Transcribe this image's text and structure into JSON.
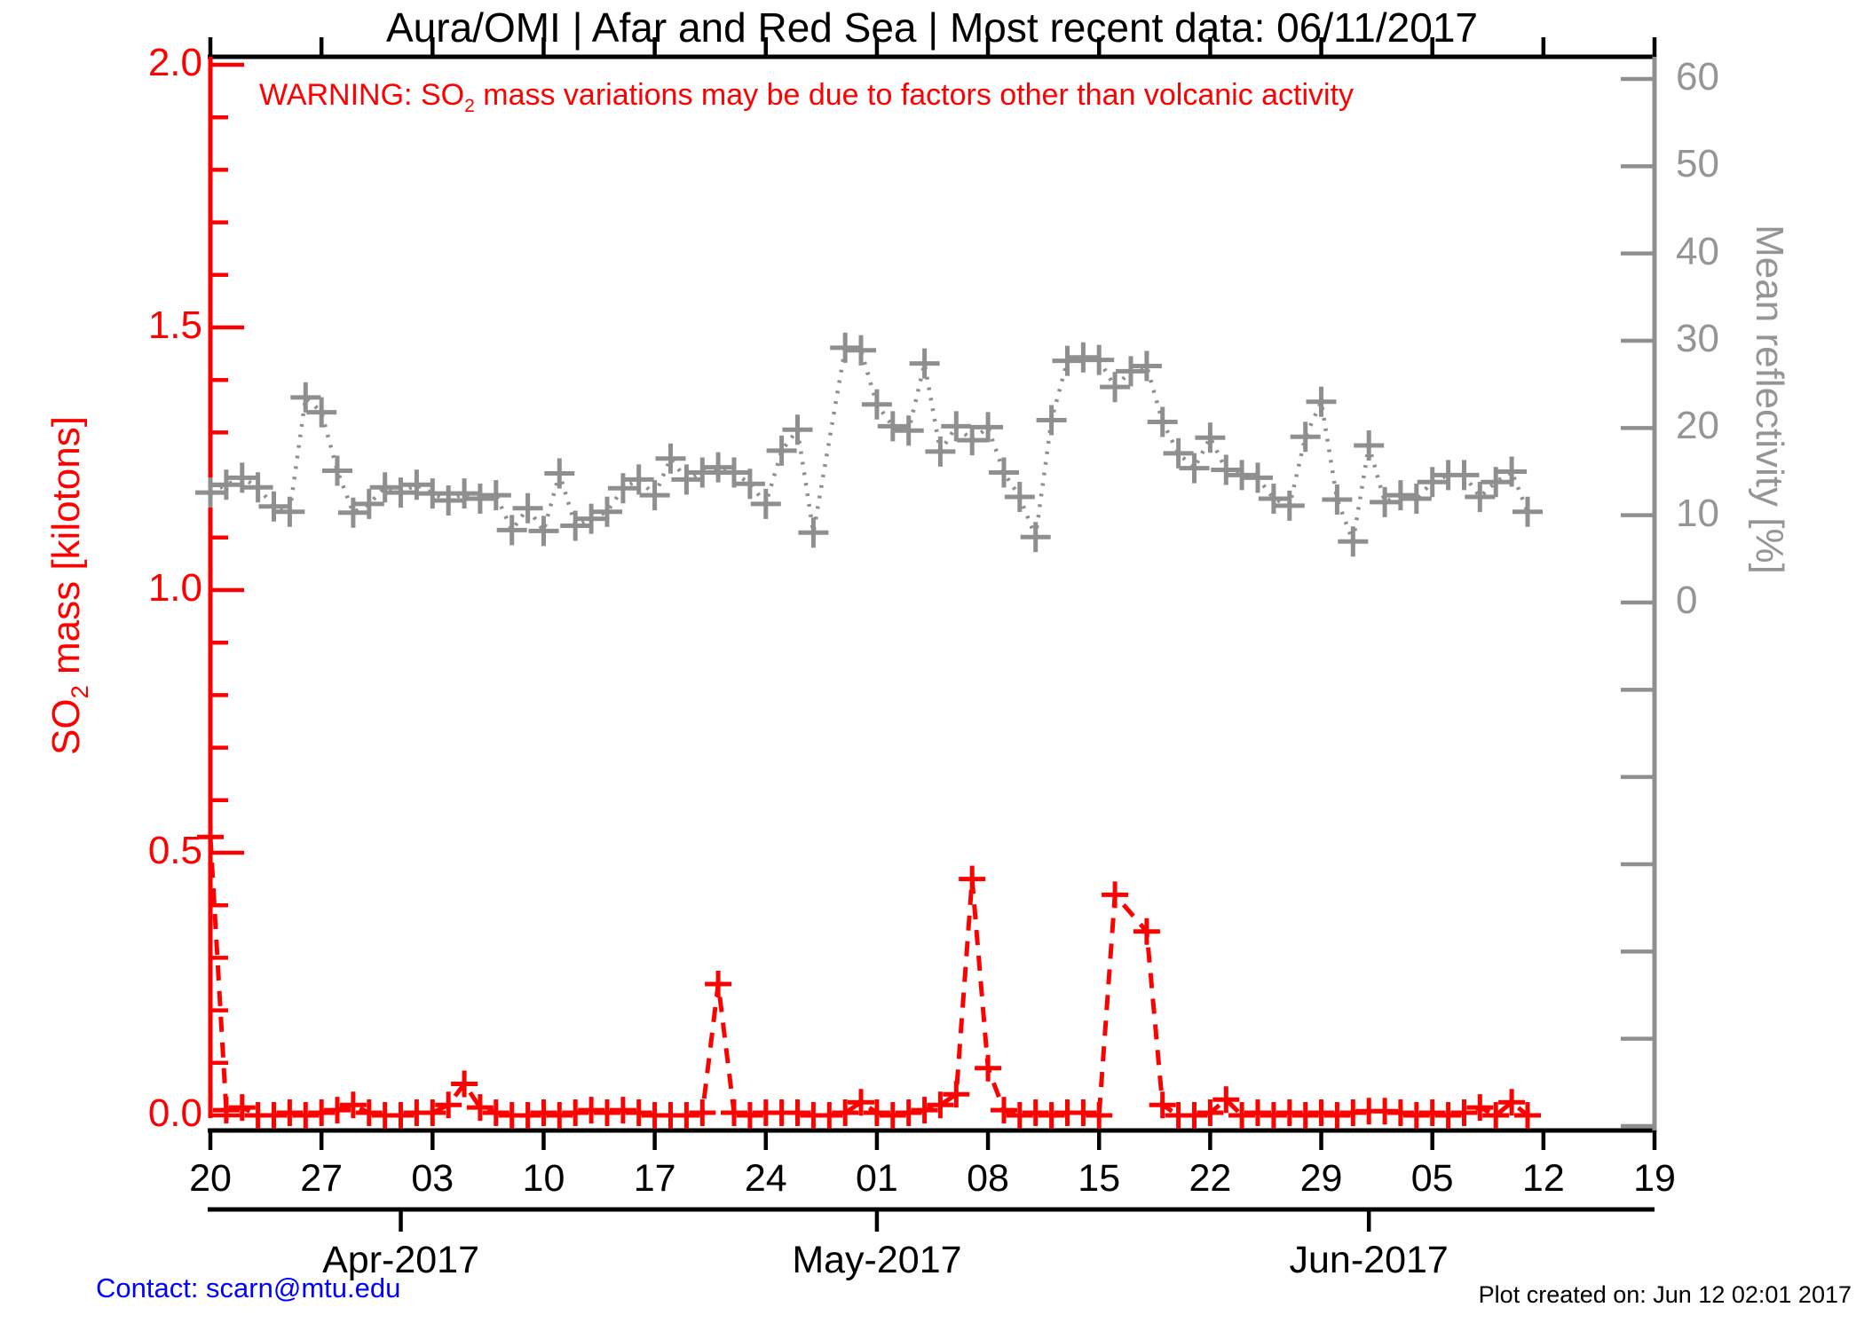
{
  "title": "Aura/OMI | Afar and Red Sea | Most recent data: 06/11/2017",
  "warning": {
    "pre": "WARNING: SO",
    "sub": "2",
    "post": " mass variations may be due to factors other than volcanic activity"
  },
  "footer": {
    "contact": "Contact: scarn@mtu.edu",
    "created": "Plot created on: Jun 12 02:01 2017"
  },
  "colors": {
    "so2": "#ff0000",
    "reflectivity": "#8f8f8f",
    "axis_gray_text": "#959595",
    "frame": "#000000",
    "contact_blue": "#0000ff",
    "background": "#ffffff"
  },
  "chart_data": {
    "type": "line",
    "title": "Aura/OMI | Afar and Red Sea | Most recent data: 06/11/2017",
    "x_axis": {
      "start_date": "2017-03-20",
      "end_date_axis": "2017-06-19",
      "total_days": 91,
      "tick_interval_days": 7,
      "tick_labels": [
        "20",
        "27",
        "03",
        "10",
        "17",
        "24",
        "01",
        "08",
        "15",
        "22",
        "29",
        "05",
        "12",
        "19"
      ],
      "month_ticks": [
        {
          "label": "Apr-2017",
          "day_offset": 12
        },
        {
          "label": "May-2017",
          "day_offset": 42
        },
        {
          "label": "Jun-2017",
          "day_offset": 73
        }
      ]
    },
    "y_left": {
      "label_pre": "SO",
      "label_sub": "2",
      "label_post": " mass [kilotons]",
      "range": [
        0.0,
        2.0
      ],
      "major_tick_labels": [
        "2.0",
        "1.5",
        "1.0",
        "0.5",
        "0.0"
      ],
      "major_tick_values": [
        2.0,
        1.5,
        1.0,
        0.5,
        0.0
      ],
      "minor_tick_step": 0.1
    },
    "y_right": {
      "label": "Mean reflectivity [%]",
      "labeled_tick_values": [
        60,
        50,
        40,
        30,
        20,
        10,
        0
      ],
      "tick_step": 10,
      "unlabeled_ticks_below_zero": 6
    },
    "dates": [
      "Mar 20",
      "Mar 21",
      "Mar 22",
      "Mar 23",
      "Mar 24",
      "Mar 25",
      "Mar 26",
      "Mar 27",
      "Mar 28",
      "Mar 29",
      "Mar 30",
      "Mar 31",
      "Apr 01",
      "Apr 02",
      "Apr 03",
      "Apr 04",
      "Apr 05",
      "Apr 06",
      "Apr 07",
      "Apr 08",
      "Apr 09",
      "Apr 10",
      "Apr 11",
      "Apr 12",
      "Apr 13",
      "Apr 14",
      "Apr 15",
      "Apr 16",
      "Apr 17",
      "Apr 18",
      "Apr 19",
      "Apr 20",
      "Apr 21",
      "Apr 22",
      "Apr 23",
      "Apr 24",
      "Apr 25",
      "Apr 26",
      "Apr 27",
      "Apr 28",
      "Apr 29",
      "Apr 30",
      "May 01",
      "May 02",
      "May 03",
      "May 04",
      "May 05",
      "May 06",
      "May 07",
      "May 08",
      "May 09",
      "May 10",
      "May 11",
      "May 12",
      "May 13",
      "May 14",
      "May 15",
      "May 16",
      "May 17",
      "May 18",
      "May 19",
      "May 20",
      "May 21",
      "May 22",
      "May 23",
      "May 24",
      "May 25",
      "May 26",
      "May 27",
      "May 28",
      "May 29",
      "May 30",
      "May 31",
      "Jun 01",
      "Jun 02",
      "Jun 03",
      "Jun 04",
      "Jun 05",
      "Jun 06",
      "Jun 07",
      "Jun 08",
      "Jun 09",
      "Jun 10",
      "Jun 11"
    ],
    "series": [
      {
        "name": "SO2 mass",
        "axis": "left",
        "units": "kilotons",
        "line_style": "dashed",
        "marker": "plus",
        "color": "#ff0000",
        "values": [
          0.53,
          0.01,
          0.015,
          0,
          0,
          0.005,
          0,
          0.005,
          0.01,
          0.02,
          0.005,
          0,
          0,
          0.005,
          0.005,
          0.02,
          0.06,
          0.015,
          0.005,
          0,
          0,
          0.005,
          0,
          0.005,
          0.01,
          0.005,
          0.01,
          0.005,
          0,
          0,
          0,
          0.005,
          0.25,
          0.005,
          0,
          0.005,
          0.005,
          0.005,
          0,
          0,
          0.005,
          0.025,
          0.005,
          0,
          0.005,
          0.01,
          0.02,
          0.04,
          0.45,
          0.09,
          0.01,
          0,
          0.005,
          0,
          0.005,
          0.005,
          0,
          0.42,
          null,
          0.35,
          0.02,
          0,
          0,
          0.005,
          0.03,
          0,
          0.005,
          0,
          0.005,
          0,
          0.005,
          0,
          0.005,
          0.008,
          0.008,
          0.005,
          0,
          0.005,
          0,
          0.005,
          0.015,
          0,
          0.025,
          0
        ]
      },
      {
        "name": "Mean reflectivity",
        "axis": "right",
        "units": "%",
        "line_style": "dotted",
        "marker": "plus",
        "color": "#8f8f8f",
        "values": [
          12.6,
          13.5,
          14.3,
          13.2,
          11.0,
          10.4,
          23.5,
          21.8,
          15.1,
          10.3,
          11.3,
          13.2,
          12.6,
          13.5,
          12.5,
          11.7,
          12.5,
          11.9,
          12.3,
          8.3,
          10.8,
          8.2,
          14.8,
          8.8,
          9.6,
          10.4,
          13.1,
          14.1,
          12.3,
          16.5,
          14.1,
          14.9,
          15.5,
          14.9,
          13.6,
          11.3,
          17.4,
          19.8,
          8.0,
          null,
          29.2,
          28.9,
          22.7,
          20.2,
          19.7,
          27.4,
          17.3,
          20.2,
          18.6,
          20.1,
          14.9,
          12.1,
          7.5,
          20.9,
          27.7,
          28.1,
          27.8,
          24.7,
          26.5,
          27.1,
          20.7,
          17.1,
          15.4,
          18.9,
          15.2,
          14.6,
          14.3,
          11.9,
          11.1,
          19.0,
          23.0,
          11.8,
          7.0,
          18.0,
          11.5,
          12.3,
          11.9,
          13.8,
          14.6,
          14.6,
          12.1,
          13.8,
          15.0,
          10.4
        ]
      }
    ],
    "grid": false,
    "legend": "none"
  }
}
